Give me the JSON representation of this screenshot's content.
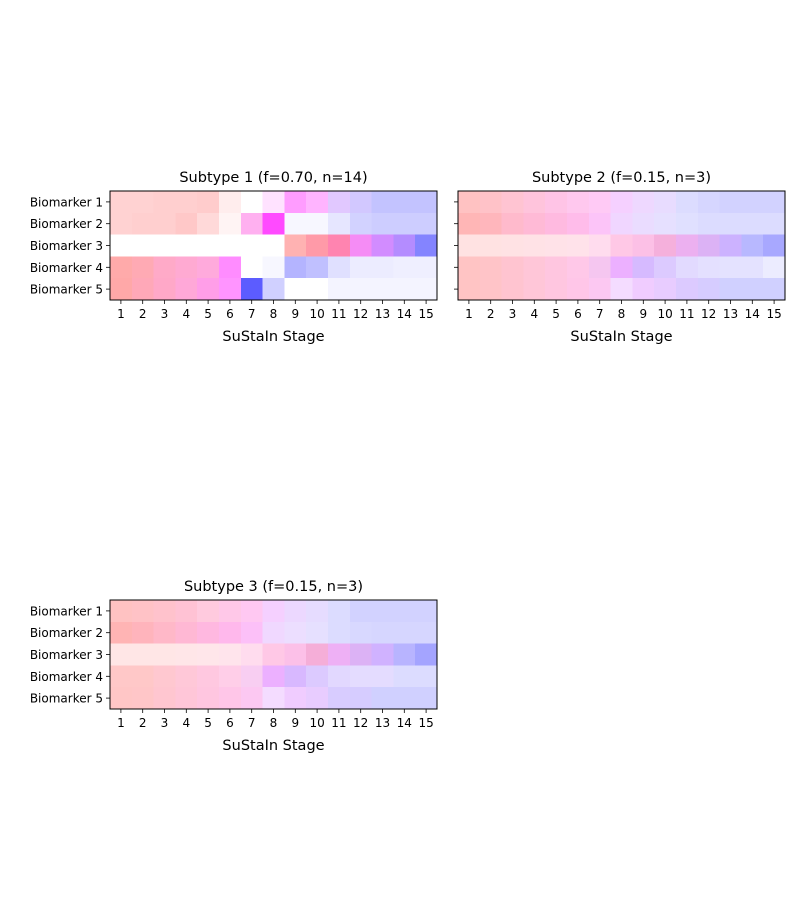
{
  "chart_data": [
    {
      "type": "heatmap",
      "title": "Subtype 1 (f=0.70, n=14)",
      "xlabel": "SuStaIn Stage",
      "x": [
        "1",
        "2",
        "3",
        "4",
        "5",
        "6",
        "7",
        "8",
        "9",
        "10",
        "11",
        "12",
        "13",
        "14",
        "15"
      ],
      "y": [
        "Biomarker 1",
        "Biomarker 2",
        "Biomarker 3",
        "Biomarker 4",
        "Biomarker 5"
      ],
      "show_ytick_labels": true,
      "cells": [
        [
          "#ffd2d2",
          "#ffd2d2",
          "#ffcfcf",
          "#ffcfcf",
          "#ffcccc",
          "#ffeded",
          "#ffffff",
          "#ffe2ff",
          "#ff9cff",
          "#ffb4ff",
          "#e1c8ff",
          "#d2c8ff",
          "#c3c3ff",
          "#c3c3ff",
          "#c3c3ff"
        ],
        [
          "#ffd2d2",
          "#ffcfcf",
          "#ffcfcf",
          "#ffc8c8",
          "#ffd9d9",
          "#fff4f4",
          "#ffb0f0",
          "#ff4aff",
          "#f7f7ff",
          "#f7f7ff",
          "#e6e6ff",
          "#d2d2ff",
          "#cdcdff",
          "#cdcdff",
          "#cdcdff"
        ],
        [
          "#ffffff",
          "#ffffff",
          "#ffffff",
          "#ffffff",
          "#ffffff",
          "#ffffff",
          "#ffffff",
          "#ffffff",
          "#ffb2b2",
          "#ff9aa8",
          "#ff84b0",
          "#f58cf5",
          "#d28cff",
          "#b48cff",
          "#8484ff"
        ],
        [
          "#ffaaaa",
          "#ffaab4",
          "#ffaac8",
          "#ffaad2",
          "#ffaadc",
          "#ff8cff",
          "#ffffff",
          "#f7f7ff",
          "#b4b4ff",
          "#c0c0ff",
          "#e0e0ff",
          "#ececff",
          "#ececff",
          "#efefff",
          "#efefff"
        ],
        [
          "#ffa8a8",
          "#ffa8b8",
          "#ffa8c8",
          "#ffa8d8",
          "#ff9ee8",
          "#ff94ff",
          "#5c5cff",
          "#d0d0ff",
          "#ffffff",
          "#ffffff",
          "#f4f4ff",
          "#f4f4ff",
          "#f4f4ff",
          "#f4f4ff",
          "#f4f4ff"
        ]
      ]
    },
    {
      "type": "heatmap",
      "title": "Subtype 2 (f=0.15, n=3)",
      "xlabel": "SuStaIn Stage",
      "x": [
        "1",
        "2",
        "3",
        "4",
        "5",
        "6",
        "7",
        "8",
        "9",
        "10",
        "11",
        "12",
        "13",
        "14",
        "15"
      ],
      "y": [
        "Biomarker 1",
        "Biomarker 2",
        "Biomarker 3",
        "Biomarker 4",
        "Biomarker 5"
      ],
      "show_ytick_labels": false,
      "cells": [
        [
          "#ffc2c2",
          "#ffc2c8",
          "#ffc4d2",
          "#ffc4dc",
          "#ffc4e6",
          "#ffc8ee",
          "#ffcaf5",
          "#f5d0ff",
          "#eed8ff",
          "#e8dcff",
          "#dcdcff",
          "#d6d6ff",
          "#d2d2ff",
          "#d2d2ff",
          "#d2d2ff"
        ],
        [
          "#ffb6b6",
          "#ffb6bc",
          "#ffbacc",
          "#ffbad6",
          "#ffbae0",
          "#ffbcea",
          "#fcc4f8",
          "#f0d6ff",
          "#eadcff",
          "#e6e0ff",
          "#e0e0ff",
          "#dcdcff",
          "#dcdcff",
          "#dcdcff",
          "#dcdcff"
        ],
        [
          "#ffe2e2",
          "#ffe2e2",
          "#ffe2e4",
          "#ffe2e6",
          "#ffe2e8",
          "#ffe2ea",
          "#ffdcee",
          "#ffc8e6",
          "#fcc0e6",
          "#f5b0dc",
          "#ecb0f0",
          "#dcb2f5",
          "#ccb2ff",
          "#b8b8ff",
          "#a8a8ff"
        ],
        [
          "#ffc4c4",
          "#ffc4c8",
          "#ffc4d0",
          "#ffc6d8",
          "#ffc6e0",
          "#ffc8e8",
          "#f5c6f0",
          "#ecb0ff",
          "#d6baff",
          "#dccaff",
          "#e2daff",
          "#e4e0ff",
          "#e4e2ff",
          "#e4e2ff",
          "#ececff"
        ],
        [
          "#ffc4c4",
          "#ffc4c8",
          "#ffc4d0",
          "#ffc6d8",
          "#ffc6e0",
          "#ffc6e8",
          "#fcc8f2",
          "#f4dcff",
          "#f0ccff",
          "#e8ccff",
          "#dccaff",
          "#d6ccff",
          "#d0d0ff",
          "#d0d0ff",
          "#d0d0ff"
        ]
      ]
    },
    {
      "type": "heatmap",
      "title": "Subtype 3 (f=0.15, n=3)",
      "xlabel": "SuStaIn Stage",
      "x": [
        "1",
        "2",
        "3",
        "4",
        "5",
        "6",
        "7",
        "8",
        "9",
        "10",
        "11",
        "12",
        "13",
        "14",
        "15"
      ],
      "y": [
        "Biomarker 1",
        "Biomarker 2",
        "Biomarker 3",
        "Biomarker 4",
        "Biomarker 5"
      ],
      "show_ytick_labels": true,
      "cells": [
        [
          "#ffc2c2",
          "#ffc2c6",
          "#ffc2cc",
          "#ffc2d4",
          "#ffcade",
          "#ffc8e8",
          "#ffc8f2",
          "#f5d0ff",
          "#ecd8ff",
          "#e6dcff",
          "#dcdcff",
          "#d2d2ff",
          "#d2d2ff",
          "#d2d2ff",
          "#d2d2ff"
        ],
        [
          "#ffb4b4",
          "#ffb4bc",
          "#ffb8c8",
          "#ffb8d4",
          "#ffb8e0",
          "#ffb8ec",
          "#fcc0f8",
          "#f0d8ff",
          "#ecdeff",
          "#e6e0ff",
          "#dcdcff",
          "#d8d8ff",
          "#d6d6ff",
          "#d6d6ff",
          "#d6d6ff"
        ],
        [
          "#ffe6e6",
          "#ffe6e6",
          "#ffe6e6",
          "#ffe6e8",
          "#ffe6ea",
          "#ffe4ec",
          "#ffdcee",
          "#ffc8e6",
          "#fcc0e8",
          "#f5aed8",
          "#eeb0f5",
          "#dcb2f5",
          "#d0b2ff",
          "#b8b4ff",
          "#a4a4ff"
        ],
        [
          "#ffc8c8",
          "#ffc8c8",
          "#ffc8d0",
          "#ffc8d8",
          "#ffc8e0",
          "#ffcee8",
          "#f8cef2",
          "#ecb0ff",
          "#d8b8ff",
          "#dccaff",
          "#e2d8ff",
          "#e4dcff",
          "#e4dcff",
          "#dcdcff",
          "#dcdcff"
        ],
        [
          "#ffc6c6",
          "#ffc6c8",
          "#ffc6d0",
          "#ffc6d8",
          "#ffc6e0",
          "#ffc6e8",
          "#fcc8f2",
          "#f4dcff",
          "#f0ccff",
          "#e8ccff",
          "#d8ccff",
          "#d6ccff",
          "#d0d0ff",
          "#d0d0ff",
          "#d0d0ff"
        ]
      ]
    }
  ]
}
